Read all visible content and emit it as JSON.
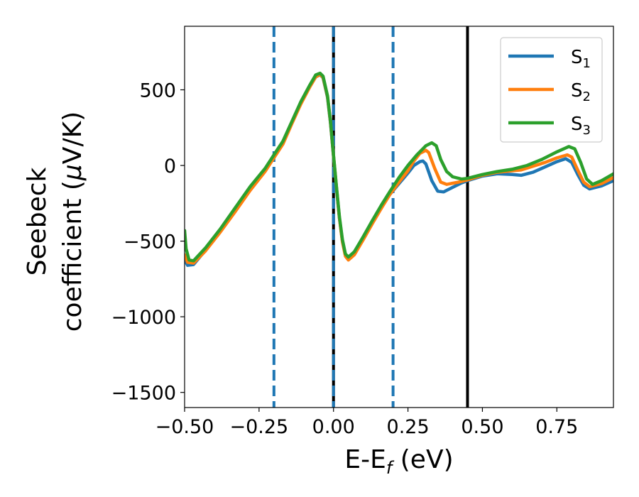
{
  "chart_data": {
    "type": "line",
    "xlabel_main": "E-E",
    "xlabel_sub": "f",
    "xlabel_unit": " (eV)",
    "ylabel_line1": "Seebeck",
    "ylabel_line2_a": "coefficient  (",
    "ylabel_line2_mu": "μ",
    "ylabel_line2_b": "V/K)",
    "xlim": [
      -0.5,
      0.94
    ],
    "ylim": [
      -1600,
      920
    ],
    "x_ticks": [
      -0.5,
      -0.25,
      0.0,
      0.25,
      0.5,
      0.75
    ],
    "x_tick_labels": [
      "−0.50",
      "−0.25",
      "0.00",
      "0.25",
      "0.50",
      "0.75"
    ],
    "y_ticks": [
      -1500,
      -1000,
      -500,
      0,
      500
    ],
    "y_tick_labels": [
      "−1500",
      "−1000",
      "−500",
      "0",
      "500"
    ],
    "grid": false,
    "legend_position": "top-right",
    "vertical_lines": [
      {
        "x": -0.2,
        "style": "dashed",
        "color": "#1f77b4"
      },
      {
        "x": 0.2,
        "style": "dashed",
        "color": "#1f77b4"
      },
      {
        "x": 0.0,
        "style": "solid",
        "color": "#000000"
      },
      {
        "x": 0.0,
        "style": "dashed",
        "color": "#1f77b4"
      },
      {
        "x": 0.45,
        "style": "solid",
        "color": "#000000"
      }
    ],
    "series": [
      {
        "name": "S",
        "sub": "1",
        "color": "#1f77b4",
        "points": [
          [
            -0.5,
            -620
          ],
          [
            -0.49,
            -660
          ],
          [
            -0.47,
            -655
          ],
          [
            -0.43,
            -560
          ],
          [
            -0.38,
            -430
          ],
          [
            -0.33,
            -290
          ],
          [
            -0.28,
            -150
          ],
          [
            -0.23,
            -30
          ],
          [
            -0.2,
            60
          ],
          [
            -0.17,
            150
          ],
          [
            -0.14,
            280
          ],
          [
            -0.11,
            410
          ],
          [
            -0.08,
            520
          ],
          [
            -0.06,
            585
          ],
          [
            -0.045,
            600
          ],
          [
            -0.035,
            580
          ],
          [
            -0.02,
            450
          ],
          [
            -0.01,
            280
          ],
          [
            0.0,
            60
          ],
          [
            0.01,
            -150
          ],
          [
            0.02,
            -350
          ],
          [
            0.03,
            -500
          ],
          [
            0.04,
            -590
          ],
          [
            0.05,
            -620
          ],
          [
            0.07,
            -580
          ],
          [
            0.1,
            -480
          ],
          [
            0.13,
            -380
          ],
          [
            0.16,
            -280
          ],
          [
            0.19,
            -190
          ],
          [
            0.22,
            -120
          ],
          [
            0.25,
            -50
          ],
          [
            0.27,
            0
          ],
          [
            0.29,
            25
          ],
          [
            0.3,
            30
          ],
          [
            0.31,
            10
          ],
          [
            0.33,
            -100
          ],
          [
            0.35,
            -170
          ],
          [
            0.37,
            -175
          ],
          [
            0.4,
            -145
          ],
          [
            0.43,
            -115
          ],
          [
            0.45,
            -100
          ],
          [
            0.5,
            -70
          ],
          [
            0.55,
            -55
          ],
          [
            0.6,
            -60
          ],
          [
            0.63,
            -65
          ],
          [
            0.67,
            -45
          ],
          [
            0.71,
            -10
          ],
          [
            0.75,
            25
          ],
          [
            0.78,
            45
          ],
          [
            0.8,
            20
          ],
          [
            0.82,
            -60
          ],
          [
            0.84,
            -130
          ],
          [
            0.86,
            -155
          ],
          [
            0.9,
            -135
          ],
          [
            0.94,
            -100
          ]
        ]
      },
      {
        "name": "S",
        "sub": "2",
        "color": "#ff7f0e",
        "points": [
          [
            -0.5,
            -590
          ],
          [
            -0.49,
            -640
          ],
          [
            -0.47,
            -645
          ],
          [
            -0.43,
            -565
          ],
          [
            -0.38,
            -440
          ],
          [
            -0.33,
            -305
          ],
          [
            -0.28,
            -165
          ],
          [
            -0.23,
            -40
          ],
          [
            -0.2,
            50
          ],
          [
            -0.17,
            140
          ],
          [
            -0.14,
            275
          ],
          [
            -0.11,
            405
          ],
          [
            -0.08,
            518
          ],
          [
            -0.06,
            585
          ],
          [
            -0.045,
            602
          ],
          [
            -0.035,
            582
          ],
          [
            -0.02,
            455
          ],
          [
            -0.01,
            285
          ],
          [
            0.0,
            65
          ],
          [
            0.01,
            -145
          ],
          [
            0.02,
            -350
          ],
          [
            0.03,
            -505
          ],
          [
            0.04,
            -600
          ],
          [
            0.05,
            -625
          ],
          [
            0.07,
            -590
          ],
          [
            0.1,
            -490
          ],
          [
            0.13,
            -385
          ],
          [
            0.16,
            -285
          ],
          [
            0.19,
            -190
          ],
          [
            0.22,
            -110
          ],
          [
            0.25,
            -35
          ],
          [
            0.27,
            30
          ],
          [
            0.29,
            80
          ],
          [
            0.31,
            100
          ],
          [
            0.32,
            85
          ],
          [
            0.34,
            -20
          ],
          [
            0.36,
            -110
          ],
          [
            0.38,
            -125
          ],
          [
            0.42,
            -110
          ],
          [
            0.45,
            -95
          ],
          [
            0.5,
            -65
          ],
          [
            0.55,
            -45
          ],
          [
            0.6,
            -35
          ],
          [
            0.63,
            -30
          ],
          [
            0.67,
            -5
          ],
          [
            0.71,
            20
          ],
          [
            0.75,
            50
          ],
          [
            0.785,
            70
          ],
          [
            0.8,
            55
          ],
          [
            0.82,
            -30
          ],
          [
            0.84,
            -110
          ],
          [
            0.86,
            -140
          ],
          [
            0.9,
            -120
          ],
          [
            0.94,
            -80
          ]
        ]
      },
      {
        "name": "S",
        "sub": "3",
        "color": "#2ca02c",
        "points": [
          [
            -0.5,
            -430
          ],
          [
            -0.495,
            -550
          ],
          [
            -0.485,
            -625
          ],
          [
            -0.47,
            -630
          ],
          [
            -0.43,
            -545
          ],
          [
            -0.38,
            -420
          ],
          [
            -0.33,
            -280
          ],
          [
            -0.28,
            -140
          ],
          [
            -0.23,
            -20
          ],
          [
            -0.2,
            70
          ],
          [
            -0.17,
            160
          ],
          [
            -0.14,
            290
          ],
          [
            -0.11,
            420
          ],
          [
            -0.08,
            530
          ],
          [
            -0.06,
            598
          ],
          [
            -0.045,
            610
          ],
          [
            -0.035,
            590
          ],
          [
            -0.02,
            460
          ],
          [
            -0.01,
            290
          ],
          [
            0.0,
            70
          ],
          [
            0.01,
            -140
          ],
          [
            0.02,
            -340
          ],
          [
            0.03,
            -490
          ],
          [
            0.04,
            -585
          ],
          [
            0.05,
            -605
          ],
          [
            0.07,
            -570
          ],
          [
            0.1,
            -470
          ],
          [
            0.13,
            -365
          ],
          [
            0.16,
            -265
          ],
          [
            0.19,
            -170
          ],
          [
            0.22,
            -80
          ],
          [
            0.25,
            0
          ],
          [
            0.28,
            70
          ],
          [
            0.31,
            130
          ],
          [
            0.33,
            150
          ],
          [
            0.345,
            130
          ],
          [
            0.36,
            40
          ],
          [
            0.38,
            -40
          ],
          [
            0.4,
            -75
          ],
          [
            0.43,
            -90
          ],
          [
            0.45,
            -85
          ],
          [
            0.5,
            -60
          ],
          [
            0.55,
            -40
          ],
          [
            0.6,
            -25
          ],
          [
            0.65,
            0
          ],
          [
            0.7,
            40
          ],
          [
            0.75,
            90
          ],
          [
            0.79,
            125
          ],
          [
            0.81,
            110
          ],
          [
            0.83,
            20
          ],
          [
            0.85,
            -90
          ],
          [
            0.87,
            -125
          ],
          [
            0.9,
            -100
          ],
          [
            0.94,
            -55
          ]
        ]
      }
    ]
  }
}
